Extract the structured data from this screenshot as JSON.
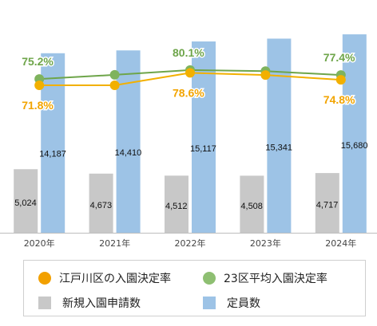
{
  "chart_data": {
    "type": "bar",
    "categories": [
      "2020年",
      "2021年",
      "2022年",
      "2023年",
      "2024年"
    ],
    "bar_series": [
      {
        "name": "新規入園申請数",
        "values": [
          5024,
          4673,
          4512,
          4508,
          4717
        ],
        "labels": [
          "5,024",
          "4,673",
          "4,512",
          "4,508",
          "4,717"
        ],
        "color": "#c8c8c8"
      },
      {
        "name": "定員数",
        "values": [
          14187,
          14410,
          15117,
          15341,
          15680
        ],
        "labels": [
          "14,187",
          "14,410",
          "15,117",
          "15,341",
          "15,680"
        ],
        "color": "#9dc3e6"
      }
    ],
    "line_series": [
      {
        "name": "江戸川区の入園決定率",
        "values": [
          71.8,
          71.8,
          78.6,
          77.4,
          74.8
        ],
        "labels": [
          "71.8%",
          "",
          "78.6%",
          "",
          "74.8%"
        ],
        "color": "#f2b000"
      },
      {
        "name": "23区平均入園決定率",
        "values": [
          75.2,
          77.5,
          80.1,
          79.5,
          77.4
        ],
        "labels": [
          "75.2%",
          "",
          "80.1%",
          "",
          "77.4%"
        ],
        "color": "#6ea54a"
      }
    ],
    "legend": {
      "position": "bottom",
      "items": [
        "江戸川区の入園決定率",
        "23区平均入園決定率",
        "新規入園申請数",
        "定員数"
      ]
    }
  }
}
